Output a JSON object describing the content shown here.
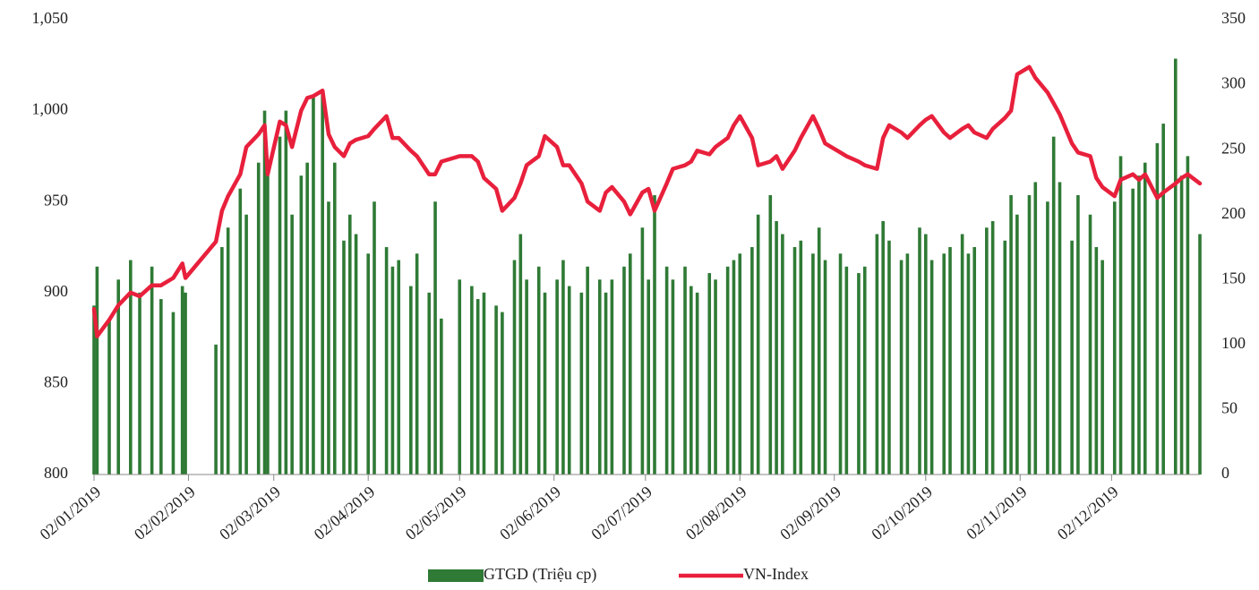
{
  "chart_data": {
    "type": "bar_line",
    "x": [
      "2019-01-02",
      "2019-01-03",
      "2019-01-07",
      "2019-01-10",
      "2019-01-14",
      "2019-01-17",
      "2019-01-21",
      "2019-01-24",
      "2019-01-28",
      "2019-01-31",
      "2019-02-01",
      "2019-02-11",
      "2019-02-13",
      "2019-02-15",
      "2019-02-19",
      "2019-02-21",
      "2019-02-25",
      "2019-02-27",
      "2019-02-28",
      "2019-03-04",
      "2019-03-06",
      "2019-03-08",
      "2019-03-11",
      "2019-03-13",
      "2019-03-15",
      "2019-03-18",
      "2019-03-20",
      "2019-03-22",
      "2019-03-25",
      "2019-03-27",
      "2019-03-29",
      "2019-04-02",
      "2019-04-04",
      "2019-04-08",
      "2019-04-10",
      "2019-04-12",
      "2019-04-16",
      "2019-04-18",
      "2019-04-22",
      "2019-04-24",
      "2019-04-26",
      "2019-05-02",
      "2019-05-06",
      "2019-05-08",
      "2019-05-10",
      "2019-05-14",
      "2019-05-16",
      "2019-05-20",
      "2019-05-22",
      "2019-05-24",
      "2019-05-28",
      "2019-05-30",
      "2019-06-03",
      "2019-06-05",
      "2019-06-07",
      "2019-06-11",
      "2019-06-13",
      "2019-06-17",
      "2019-06-19",
      "2019-06-21",
      "2019-06-25",
      "2019-06-27",
      "2019-07-01",
      "2019-07-03",
      "2019-07-05",
      "2019-07-09",
      "2019-07-11",
      "2019-07-15",
      "2019-07-17",
      "2019-07-19",
      "2019-07-23",
      "2019-07-25",
      "2019-07-29",
      "2019-07-31",
      "2019-08-02",
      "2019-08-06",
      "2019-08-08",
      "2019-08-12",
      "2019-08-14",
      "2019-08-16",
      "2019-08-20",
      "2019-08-22",
      "2019-08-26",
      "2019-08-28",
      "2019-08-30",
      "2019-09-04",
      "2019-09-06",
      "2019-09-10",
      "2019-09-12",
      "2019-09-16",
      "2019-09-18",
      "2019-09-20",
      "2019-09-24",
      "2019-09-26",
      "2019-09-30",
      "2019-10-02",
      "2019-10-04",
      "2019-10-08",
      "2019-10-10",
      "2019-10-14",
      "2019-10-16",
      "2019-10-18",
      "2019-10-22",
      "2019-10-24",
      "2019-10-28",
      "2019-10-30",
      "2019-11-01",
      "2019-11-05",
      "2019-11-07",
      "2019-11-11",
      "2019-11-13",
      "2019-11-15",
      "2019-11-19",
      "2019-11-21",
      "2019-11-25",
      "2019-11-27",
      "2019-11-29",
      "2019-12-03",
      "2019-12-05",
      "2019-12-09",
      "2019-12-11",
      "2019-12-13",
      "2019-12-17",
      "2019-12-19",
      "2019-12-23",
      "2019-12-25",
      "2019-12-27",
      "2019-12-31"
    ],
    "series": [
      {
        "name": "GTGD (Triệu cp)",
        "color": "#2f7a35",
        "axis": "y2",
        "values": [
          130,
          160,
          120,
          150,
          165,
          140,
          160,
          135,
          125,
          145,
          140,
          100,
          175,
          190,
          220,
          200,
          240,
          280,
          230,
          260,
          280,
          200,
          230,
          240,
          290,
          295,
          210,
          240,
          180,
          200,
          185,
          170,
          210,
          175,
          160,
          165,
          145,
          170,
          140,
          210,
          120,
          150,
          145,
          135,
          140,
          130,
          125,
          165,
          185,
          150,
          160,
          140,
          150,
          165,
          145,
          140,
          160,
          150,
          140,
          150,
          160,
          170,
          190,
          150,
          215,
          160,
          150,
          160,
          145,
          140,
          155,
          150,
          160,
          165,
          170,
          175,
          200,
          215,
          195,
          185,
          175,
          180,
          170,
          190,
          165,
          170,
          160,
          155,
          160,
          185,
          195,
          180,
          165,
          170,
          190,
          185,
          165,
          170,
          175,
          185,
          170,
          175,
          190,
          195,
          180,
          215,
          200,
          215,
          225,
          210,
          260,
          225,
          180,
          215,
          200,
          175,
          165,
          210,
          245,
          220,
          230,
          240,
          255,
          270,
          320,
          230,
          245,
          185
        ]
      },
      {
        "name": "VN-Index",
        "color": "#e8203c",
        "values": [
          891,
          876,
          885,
          893,
          900,
          898,
          904,
          904,
          908,
          916,
          908,
          928,
          945,
          953,
          965,
          980,
          987,
          992,
          965,
          994,
          992,
          980,
          1000,
          1007,
          1008,
          1011,
          987,
          980,
          975,
          982,
          984,
          986,
          990,
          997,
          985,
          985,
          978,
          975,
          965,
          965,
          972,
          975,
          975,
          972,
          963,
          957,
          945,
          952,
          960,
          970,
          975,
          986,
          980,
          970,
          970,
          960,
          950,
          945,
          955,
          958,
          950,
          943,
          955,
          957,
          945,
          960,
          968,
          970,
          972,
          978,
          976,
          980,
          985,
          992,
          997,
          985,
          970,
          972,
          975,
          968,
          978,
          985,
          997,
          990,
          982,
          977,
          975,
          972,
          970,
          968,
          985,
          992,
          988,
          985,
          992,
          995,
          997,
          988,
          985,
          990,
          992,
          988,
          985,
          990,
          996,
          1000,
          1020,
          1024,
          1018,
          1010,
          1004,
          998,
          982,
          977,
          975,
          963,
          958,
          953,
          962,
          965,
          962,
          965,
          952,
          955,
          960,
          963,
          965,
          960
        ]
      }
    ],
    "xlim": [
      "2019-01-02",
      "2019-12-31"
    ],
    "xticks": [
      {
        "value": "2019-01-02",
        "label": "02/01/2019"
      },
      {
        "value": "2019-02-02",
        "label": "02/02/2019"
      },
      {
        "value": "2019-03-02",
        "label": "02/03/2019"
      },
      {
        "value": "2019-04-02",
        "label": "02/04/2019"
      },
      {
        "value": "2019-05-02",
        "label": "02/05/2019"
      },
      {
        "value": "2019-06-02",
        "label": "02/06/2019"
      },
      {
        "value": "2019-07-02",
        "label": "02/07/2019"
      },
      {
        "value": "2019-08-02",
        "label": "02/08/2019"
      },
      {
        "value": "2019-09-02",
        "label": "02/09/2019"
      },
      {
        "value": "2019-10-02",
        "label": "02/10/2019"
      },
      {
        "value": "2019-11-02",
        "label": "02/11/2019"
      },
      {
        "value": "2019-12-02",
        "label": "02/12/2019"
      }
    ],
    "ylim": [
      800,
      1050
    ],
    "yticks": [
      800,
      850,
      900,
      950,
      {
        "value": 1000,
        "label": "1,000"
      },
      {
        "value": 1050,
        "label": "1,050"
      }
    ],
    "y2lim": [
      0,
      350
    ],
    "y2ticks": [
      0,
      50,
      100,
      150,
      200,
      250,
      300,
      350
    ],
    "grid": false,
    "legend": "bottom"
  }
}
